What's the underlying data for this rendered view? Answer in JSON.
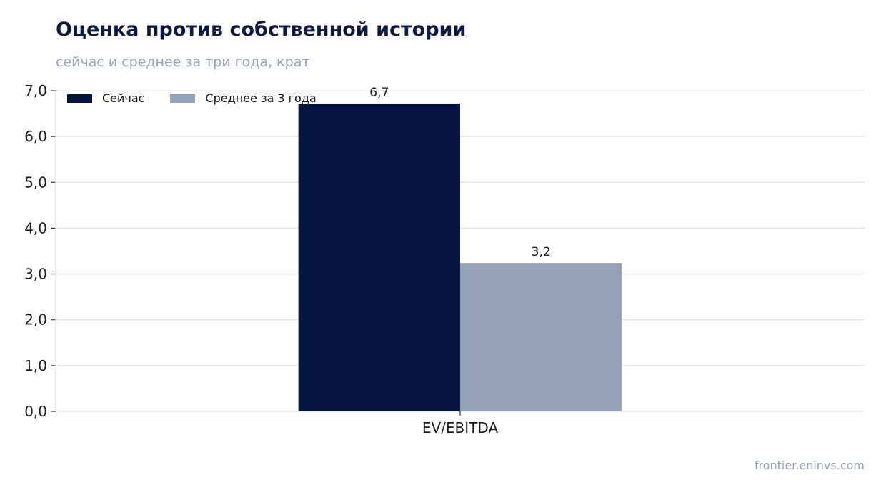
{
  "header": {
    "title": "Оценка против собственной истории",
    "subtitle": "сейчас и среднее за три года, крат"
  },
  "source": "frontier.eninvs.com",
  "colors": {
    "series_now": "#061540",
    "series_avg": "#94a3b8",
    "grid": "#e2e6ef",
    "axis_text": "#1a1a1a"
  },
  "chart_data": {
    "type": "bar",
    "title": "Оценка против собственной истории",
    "subtitle": "сейчас и среднее за три года, крат",
    "categories": [
      "EV/EBITDA"
    ],
    "series": [
      {
        "name": "Сейчас",
        "values": [
          6.72
        ],
        "label": "6,7",
        "color": "#061540"
      },
      {
        "name": "Среднее за 3 года",
        "values": [
          3.24
        ],
        "label": "3,2",
        "color": "#94a3b8"
      }
    ],
    "ylim": [
      0,
      7
    ],
    "yticks": [
      "0,0",
      "1,0",
      "2,0",
      "3,0",
      "4,0",
      "5,0",
      "6,0",
      "7,0"
    ],
    "grid": true,
    "legend_position": "top-left"
  }
}
